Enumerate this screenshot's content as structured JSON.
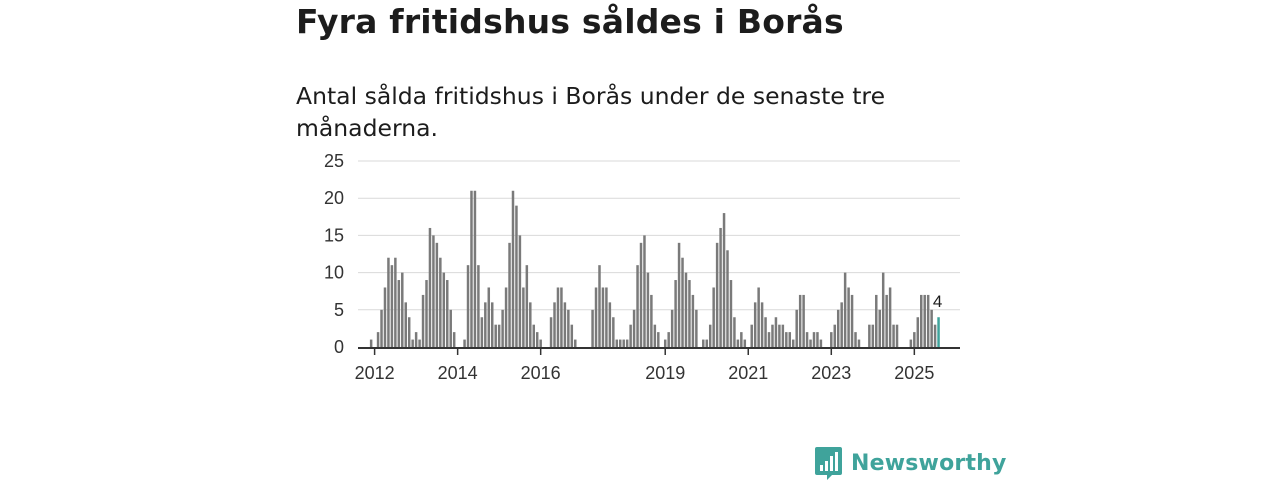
{
  "header": {
    "title": "Fyra fritidshus såldes i Borås",
    "subtitle": "Antal sålda fritidshus i Borås under de senaste tre månaderna."
  },
  "branding": {
    "name": "Newsworthy",
    "color": "#3fa39b"
  },
  "chart_data": {
    "type": "bar",
    "title": "Antal sålda fritidshus i Borås under de senaste tre månaderna.",
    "xlabel": "",
    "ylabel": "",
    "ylim": [
      0,
      25
    ],
    "yticks": [
      0,
      5,
      10,
      15,
      20,
      25
    ],
    "xlim": [
      2011.6,
      2026.1
    ],
    "xticks": [
      {
        "label": "2012",
        "value": 2012.0
      },
      {
        "label": "2014",
        "value": 2014.0
      },
      {
        "label": "2016",
        "value": 2016.0
      },
      {
        "label": "2019",
        "value": 2019.0
      },
      {
        "label": "2021",
        "value": 2021.0
      },
      {
        "label": "2023",
        "value": 2023.0
      },
      {
        "label": "2025",
        "value": 2025.0
      }
    ],
    "grid": true,
    "bar_color": "#7a7a7a",
    "highlight_color": "#3fa39b",
    "start": "2011-12",
    "values": [
      1,
      0,
      2,
      5,
      8,
      12,
      11,
      12,
      9,
      10,
      6,
      4,
      1,
      2,
      1,
      7,
      9,
      16,
      15,
      14,
      12,
      10,
      9,
      5,
      2,
      0,
      0,
      1,
      11,
      21,
      21,
      11,
      4,
      6,
      8,
      6,
      3,
      3,
      5,
      8,
      14,
      21,
      19,
      15,
      8,
      11,
      6,
      3,
      2,
      1,
      0,
      0,
      4,
      6,
      8,
      8,
      6,
      5,
      3,
      1,
      0,
      0,
      0,
      0,
      5,
      8,
      11,
      8,
      8,
      6,
      4,
      1,
      1,
      1,
      1,
      3,
      5,
      11,
      14,
      15,
      10,
      7,
      3,
      2,
      0,
      1,
      2,
      5,
      9,
      14,
      12,
      10,
      9,
      7,
      5,
      0,
      1,
      1,
      3,
      8,
      14,
      16,
      18,
      13,
      9,
      4,
      1,
      2,
      1,
      0,
      3,
      6,
      8,
      6,
      4,
      2,
      3,
      4,
      3,
      3,
      2,
      2,
      1,
      5,
      7,
      7,
      2,
      1,
      2,
      2,
      1,
      0,
      0,
      2,
      3,
      5,
      6,
      10,
      8,
      7,
      2,
      1,
      0,
      0,
      3,
      3,
      7,
      5,
      10,
      7,
      8,
      3,
      3,
      0,
      0,
      0,
      1,
      2,
      4,
      7,
      7,
      7,
      5,
      3,
      4
    ],
    "last_value_label": "4"
  }
}
